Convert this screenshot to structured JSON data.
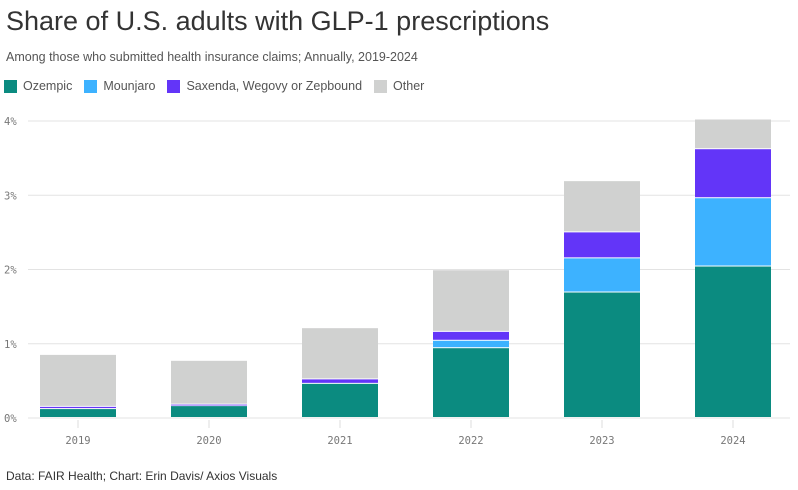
{
  "chart_data": {
    "type": "bar",
    "stacked": true,
    "title": "Share of U.S. adults with GLP-1 prescriptions",
    "subtitle": "Among those who submitted health insurance claims; Annually, 2019-2024",
    "xlabel": "",
    "ylabel": "",
    "ylim": [
      0,
      4
    ],
    "yticks": [
      "0%",
      "1%",
      "2%",
      "3%",
      "4%"
    ],
    "categories": [
      "2019",
      "2020",
      "2021",
      "2022",
      "2023",
      "2024"
    ],
    "series": [
      {
        "name": "Ozempic",
        "color": "#0b8b80",
        "values": [
          0.12,
          0.16,
          0.46,
          0.94,
          1.69,
          2.04
        ]
      },
      {
        "name": "Mounjaro",
        "color": "#3db2ff",
        "values": [
          0.0,
          0.0,
          0.0,
          0.1,
          0.46,
          0.92
        ]
      },
      {
        "name": "Saxenda, Wegovy or Zepbound",
        "color": "#6335f8",
        "values": [
          0.03,
          0.02,
          0.06,
          0.12,
          0.35,
          0.66
        ]
      },
      {
        "name": "Other",
        "color": "#d0d1d0",
        "values": [
          0.7,
          0.59,
          0.69,
          0.83,
          0.69,
          0.4
        ]
      }
    ],
    "legend_position": "top-left",
    "grid": true
  },
  "source": "Data: FAIR Health; Chart: Erin Davis/ Axios Visuals"
}
